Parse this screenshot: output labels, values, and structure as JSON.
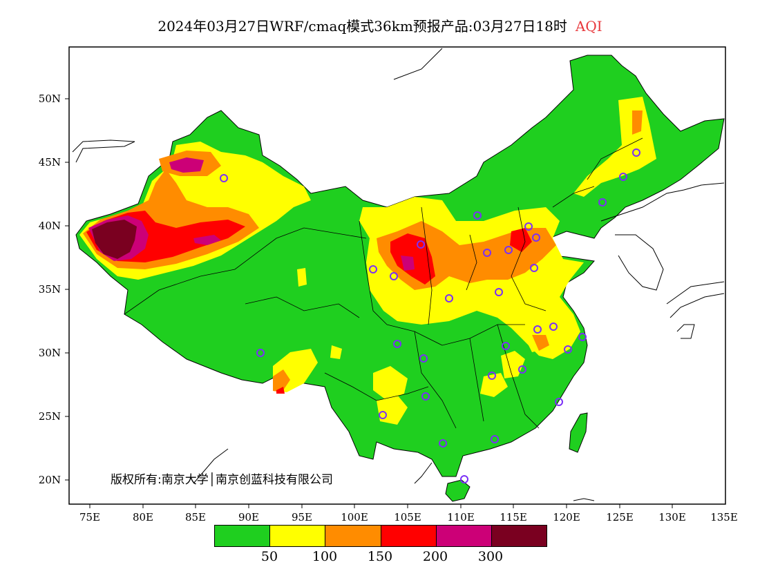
{
  "title": {
    "main": "2024年03月27日WRF/cmaq模式36km预报产品:03月27日18时",
    "variable": "AQI",
    "variable_color": "#e8383c"
  },
  "axes": {
    "y_labels": [
      "50N",
      "45N",
      "40N",
      "35N",
      "30N",
      "25N",
      "20N"
    ],
    "x_labels": [
      "75E",
      "80E",
      "85E",
      "90E",
      "95E",
      "100E",
      "105E",
      "110E",
      "115E",
      "120E",
      "125E",
      "130E",
      "135E"
    ],
    "lon_range": [
      73,
      135
    ],
    "lat_range": [
      18,
      54
    ]
  },
  "copyright": "版权所有:南京大学│南京创蓝科技有限公司",
  "legend": {
    "colors": [
      "#1fcf1f",
      "#ffff00",
      "#ff8c00",
      "#ff0000",
      "#cc0077",
      "#7a0020"
    ],
    "labels": [
      "50",
      "100",
      "150",
      "200",
      "300"
    ]
  },
  "colors": {
    "good": "#1fcf1f",
    "moderate": "#ffff00",
    "sensitive": "#ff8c00",
    "unhealthy": "#ff0000",
    "very_unhealthy": "#cc0077",
    "hazardous": "#7a0020",
    "city_marker": "#7b2ff7"
  }
}
